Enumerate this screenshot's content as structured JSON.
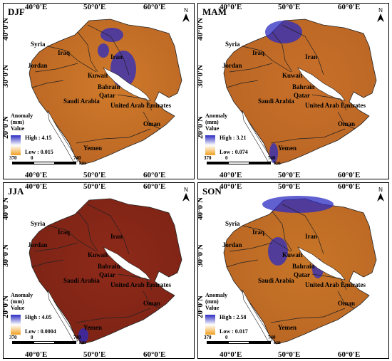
{
  "legend": {
    "title_line1": "Anomaly",
    "title_line2": "(mm)",
    "title_line3": "Value",
    "high_colour": "#2b2bc2",
    "low_colour": "#f0a020"
  },
  "axes": {
    "lon_ticks": [
      "40°0'E",
      "50°0'E",
      "60°0'E"
    ],
    "lat_ticks": [
      "40°0'N",
      "30°0'N",
      "20°0'N"
    ]
  },
  "countries": [
    "Syria",
    "Iraq",
    "Iran",
    "Jordan",
    "Kuwait",
    "Bahrain",
    "Qatar",
    "Saudi Arabia",
    "United Arab Emirates",
    "Oman",
    "Yemen"
  ],
  "north_label": "N",
  "scale_bar": {
    "labels": [
      "370",
      "0",
      "740"
    ],
    "unit": "km"
  },
  "panels": [
    {
      "season": "DJF",
      "high": "High : 4.15",
      "low": "Low : 0.015",
      "base_colour": "#cf7a2a"
    },
    {
      "season": "MAM",
      "high": "High : 3.21",
      "low": "Low : 0.074",
      "base_colour": "#c8702a"
    },
    {
      "season": "JJA",
      "high": "High : 4.05",
      "low": "Low : 0.0004",
      "base_colour": "#8e2a1a"
    },
    {
      "season": "SON",
      "high": "High : 2.58",
      "low": "Low : 0.017",
      "base_colour": "#c87628"
    }
  ]
}
